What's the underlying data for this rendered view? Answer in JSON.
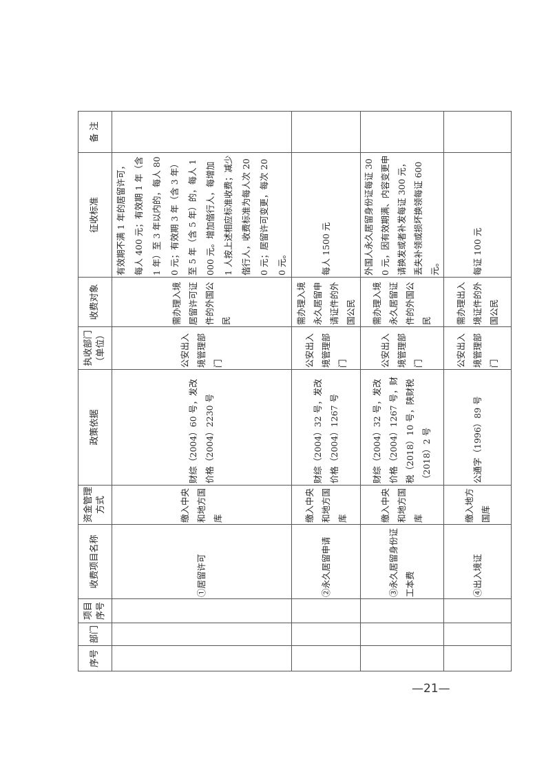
{
  "table": {
    "headers": [
      "序号",
      "部门",
      "项目序号",
      "收费项目名称",
      "资金管理方式",
      "政策依据",
      "执收部门（单位）",
      "收费对象",
      "征收标准",
      "备 注"
    ],
    "rows": [
      {
        "name": "①居留许可",
        "fund": "缴入中央和地方国库",
        "policy": "财综（2004）60 号，发改价格（2004）2230 号",
        "dept": "公安出入境管理部门",
        "target": "需办理入境居留许可证件的外国公民",
        "standard": "有效期不满 1 年的居留许可，每人 400 元；有效期 1 年（含 1 年）至 3 年以内的，每人 800 元；有效期 3 年（含 3 年）至 5 年（含 5 年）的，每人 1000 元。增加偕行人，每增加 1 人按上述相应标准收费；减少偕行人，收费标准为每人次 200 元；居留许可变更，每次 200 元。",
        "note": ""
      },
      {
        "name": "②永久居留申请",
        "fund": "缴入中央和地方国库",
        "policy": "财综（2004）32 号，发改价格（2004）1267 号",
        "dept": "公安出入境管理部门",
        "target": "需办理入境永久居留申请证件的外国公民",
        "standard": "每人 1500 元",
        "note": ""
      },
      {
        "name": "③永久居留身份证工本费",
        "fund": "缴入中央和地方国库",
        "policy": "财综（2004）32 号，发改价格（2004）1267 号，财税（2018）10 号，陕财税（2018）2 号",
        "dept": "公安出入境管理部门",
        "target": "需办理入境永久居留证件的外国公民",
        "standard": "外国人永久居留身份证每证 300 元，因有效期满、内容变更申请换发或者补发每证 300 元，丢失补领或损坏换领每证 600 元。",
        "note": ""
      },
      {
        "name": "④出入境证",
        "fund": "缴入地方国库",
        "policy": "公通字（1996）89 号",
        "dept": "公安出入境管理部门",
        "target": "需办理出入境证件的外国公民",
        "standard": "每证 100 元",
        "note": ""
      }
    ]
  },
  "page_number": "—21—"
}
